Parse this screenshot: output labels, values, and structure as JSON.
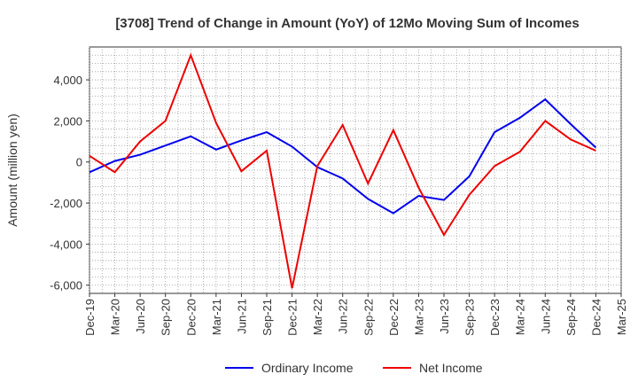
{
  "chart_data": {
    "type": "line",
    "title": "[3708]  Trend of Change in Amount (YoY) of 12Mo Moving Sum of Incomes",
    "xlabel": "",
    "ylabel": "Amount (million yen)",
    "ylim": [
      -6400,
      5600
    ],
    "yticks": [
      4000,
      2000,
      0,
      -2000,
      -4000,
      -6000
    ],
    "ytick_labels": [
      "4,000",
      "2,000",
      "0",
      "-2,000",
      "-4,000",
      "-6,000"
    ],
    "categories": [
      "Dec-19",
      "Mar-20",
      "Jun-20",
      "Sep-20",
      "Dec-20",
      "Mar-21",
      "Jun-21",
      "Sep-21",
      "Dec-21",
      "Mar-22",
      "Jun-22",
      "Sep-22",
      "Dec-22",
      "Mar-23",
      "Jun-23",
      "Sep-23",
      "Dec-23",
      "Mar-24",
      "Jun-24",
      "Sep-24",
      "Dec-24",
      "Mar-25"
    ],
    "grid": true,
    "legend_position": "bottom",
    "series": [
      {
        "name": "Ordinary Income",
        "color": "#0000ee",
        "values": [
          -500,
          50,
          350,
          800,
          1250,
          600,
          1050,
          1450,
          750,
          -250,
          -800,
          -1800,
          -2500,
          -1650,
          -1850,
          -700,
          1450,
          2150,
          3050,
          1850,
          700,
          null
        ]
      },
      {
        "name": "Net Income",
        "color": "#ee0000",
        "values": [
          300,
          -500,
          1000,
          2000,
          5200,
          1900,
          -450,
          550,
          -6150,
          -200,
          1800,
          -1050,
          1550,
          -1250,
          -3550,
          -1600,
          -200,
          500,
          2000,
          1100,
          550,
          null
        ]
      }
    ]
  }
}
